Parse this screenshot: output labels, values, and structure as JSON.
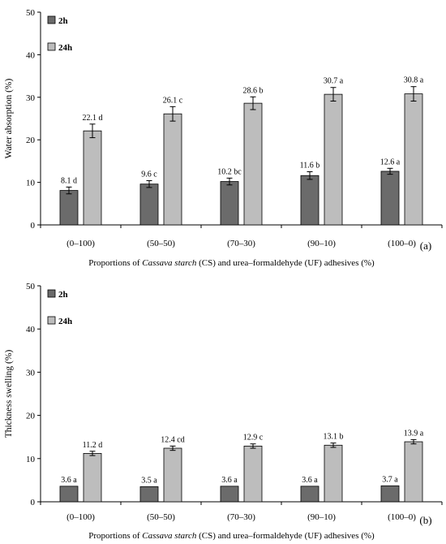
{
  "chart_data": [
    {
      "type": "bar",
      "panel_label": "(a)",
      "ylabel": "Water absorption  (%)",
      "xlabel_pre": "Proportions of ",
      "xlabel_italic": "Cassava starch",
      "xlabel_post": " (CS) and urea–formaldehyde  (UF) adhesives (%)",
      "categories": [
        "(0–100)",
        "(50–50)",
        "(70–30)",
        "(90–10)",
        "(100–0)"
      ],
      "ylim": [
        0,
        50
      ],
      "yticks": [
        0,
        10,
        20,
        30,
        40,
        50
      ],
      "legend_position": "top-left",
      "series": [
        {
          "name": "2h",
          "color": "#6b6b6b",
          "values": [
            8.1,
            9.6,
            10.2,
            11.6,
            12.6
          ],
          "errors": [
            0.8,
            0.8,
            0.8,
            0.9,
            0.7
          ],
          "labels": [
            "8.1 d",
            "9.6 c",
            "10.2 bc",
            "11.6 b",
            "12.6 a"
          ]
        },
        {
          "name": "24h",
          "color": "#bdbdbd",
          "values": [
            22.1,
            26.1,
            28.6,
            30.7,
            30.8
          ],
          "errors": [
            1.6,
            1.7,
            1.5,
            1.6,
            1.7
          ],
          "labels": [
            "22.1 d",
            "26.1 c",
            "28.6 b",
            "30.7 a",
            "30.8 a"
          ]
        }
      ]
    },
    {
      "type": "bar",
      "panel_label": "(b)",
      "ylabel": "Thickness swelling    (%)",
      "xlabel_pre": "Proportions of ",
      "xlabel_italic": "Cassava starch",
      "xlabel_post": " (CS) and urea–formaldehyde  (UF) adhesives (%)",
      "categories": [
        "(0–100)",
        "(50–50)",
        "(70–30)",
        "(90–10)",
        "(100–0)"
      ],
      "ylim": [
        0,
        50
      ],
      "yticks": [
        0,
        10,
        20,
        30,
        40,
        50
      ],
      "legend_position": "top-left",
      "series": [
        {
          "name": "2h",
          "color": "#6b6b6b",
          "values": [
            3.6,
            3.5,
            3.6,
            3.6,
            3.7
          ],
          "errors": [
            0,
            0,
            0,
            0,
            0
          ],
          "labels": [
            "3.6 a",
            "3.5 a",
            "3.6 a",
            "3.6 a",
            "3.7 a"
          ]
        },
        {
          "name": "24h",
          "color": "#bdbdbd",
          "values": [
            11.2,
            12.4,
            12.9,
            13.1,
            13.9
          ],
          "errors": [
            0.5,
            0.5,
            0.5,
            0.5,
            0.5
          ],
          "labels": [
            "11.2 d",
            "12.4 cd",
            "12.9 c",
            "13.1 b",
            "13.9 a"
          ]
        }
      ]
    }
  ]
}
